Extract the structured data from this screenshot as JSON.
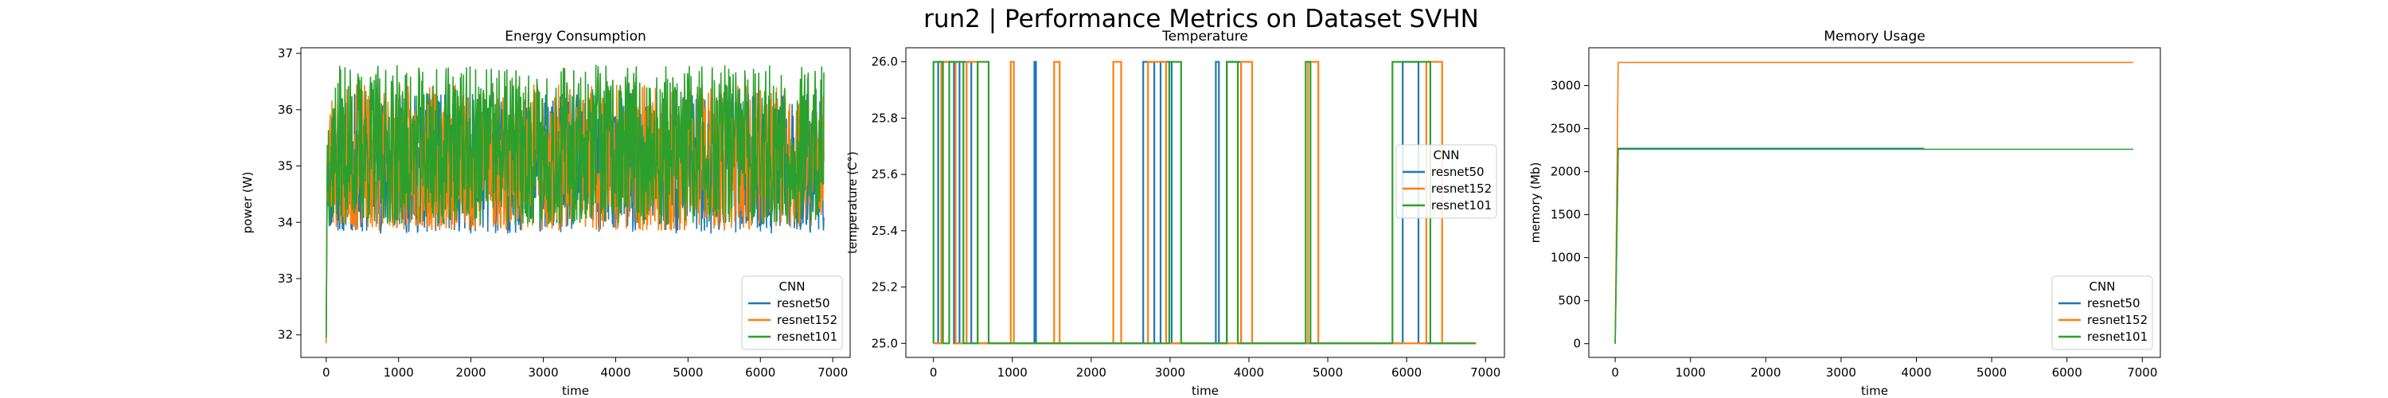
{
  "figure": {
    "title": "run2 | Performance Metrics on Dataset SVHN"
  },
  "chart_data": [
    {
      "type": "line",
      "title": "Energy Consumption",
      "xlabel": "time",
      "ylabel": "power (W)",
      "xlim": [
        -350,
        7240
      ],
      "ylim": [
        31.6,
        37.1
      ],
      "xticks": [
        0,
        1000,
        2000,
        3000,
        4000,
        5000,
        6000,
        7000
      ],
      "yticks": [
        32,
        33,
        34,
        35,
        36,
        37
      ],
      "legend": {
        "title": "CNN",
        "position": "lower-right"
      },
      "series": [
        {
          "name": "resnet50",
          "color": "#1f77b4",
          "pattern": "noise",
          "x_end": 6880,
          "start": 32.0,
          "low": 33.8,
          "high": 36.3,
          "seed": 11
        },
        {
          "name": "resnet152",
          "color": "#ff7f0e",
          "pattern": "noise",
          "x_end": 6880,
          "start": 31.85,
          "low": 33.85,
          "high": 36.45,
          "seed": 23
        },
        {
          "name": "resnet101",
          "color": "#2ca02c",
          "pattern": "noise",
          "x_end": 6880,
          "start": 31.95,
          "low": 33.95,
          "high": 36.8,
          "seed": 37
        }
      ]
    },
    {
      "type": "line",
      "title": "Temperature",
      "xlabel": "time",
      "ylabel": "temperature (C°)",
      "xlim": [
        -350,
        7240
      ],
      "ylim": [
        24.95,
        26.05
      ],
      "xticks": [
        0,
        1000,
        2000,
        3000,
        4000,
        5000,
        6000,
        7000
      ],
      "yticks": [
        25.0,
        25.2,
        25.4,
        25.6,
        25.8,
        26.0
      ],
      "ytick_labels": [
        "25.0",
        "25.2",
        "25.4",
        "25.6",
        "25.8",
        "26.0"
      ],
      "legend": {
        "title": "CNN",
        "position": "center-right"
      },
      "series": [
        {
          "name": "resnet50",
          "color": "#1f77b4",
          "pattern": "step",
          "x_end": 6880,
          "base": 25.0,
          "top": 26.0,
          "segments": [
            [
              60,
              260
            ],
            [
              330,
              480
            ],
            [
              1280,
              1300
            ],
            [
              2660,
              2800
            ],
            [
              2880,
              3020
            ],
            [
              3580,
              3620
            ],
            [
              3720,
              3900
            ],
            [
              5950,
              6150
            ]
          ]
        },
        {
          "name": "resnet152",
          "color": "#ff7f0e",
          "pattern": "step",
          "x_end": 6880,
          "base": 25.0,
          "top": 26.0,
          "segments": [
            [
              100,
              280
            ],
            [
              420,
              560
            ],
            [
              980,
              1020
            ],
            [
              1530,
              1600
            ],
            [
              2280,
              2380
            ],
            [
              2720,
              2950
            ],
            [
              3900,
              4040
            ],
            [
              4750,
              4880
            ],
            [
              6250,
              6450
            ]
          ]
        },
        {
          "name": "resnet101",
          "color": "#2ca02c",
          "pattern": "step",
          "x_end": 6880,
          "base": 25.0,
          "top": 26.0,
          "segments": [
            [
              0,
              120
            ],
            [
              200,
              380
            ],
            [
              560,
              700
            ],
            [
              2990,
              3140
            ],
            [
              3720,
              3860
            ],
            [
              4720,
              4780
            ],
            [
              5820,
              6300
            ]
          ]
        }
      ]
    },
    {
      "type": "line",
      "title": "Memory Usage",
      "xlabel": "time",
      "ylabel": "memory (Mb)",
      "xlim": [
        -350,
        7240
      ],
      "ylim": [
        -160,
        3440
      ],
      "xticks": [
        0,
        1000,
        2000,
        3000,
        4000,
        5000,
        6000,
        7000
      ],
      "yticks": [
        0,
        500,
        1000,
        1500,
        2000,
        2500,
        3000
      ],
      "legend": {
        "title": "CNN",
        "position": "lower-right"
      },
      "series": [
        {
          "name": "resnet50",
          "color": "#1f77b4",
          "pattern": "ramp",
          "x": [
            0,
            40,
            4100
          ],
          "y": [
            0,
            2270,
            2270
          ]
        },
        {
          "name": "resnet152",
          "color": "#ff7f0e",
          "pattern": "ramp",
          "x": [
            0,
            40,
            6880
          ],
          "y": [
            0,
            3270,
            3270
          ]
        },
        {
          "name": "resnet101",
          "color": "#2ca02c",
          "pattern": "ramp",
          "x": [
            0,
            40,
            6880
          ],
          "y": [
            0,
            2260,
            2260
          ]
        }
      ]
    }
  ]
}
